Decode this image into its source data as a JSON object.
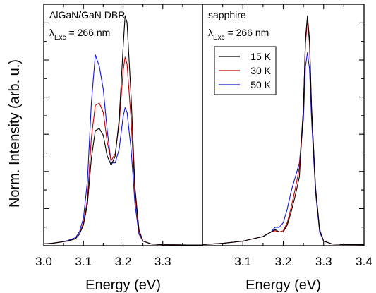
{
  "chart_data": {
    "type": "line",
    "ylabel": "Norm. Intensity (arb. u.)",
    "legend": {
      "placement": "top-center of right panel",
      "entries": [
        {
          "name": "15 K",
          "color": "#000000"
        },
        {
          "name": "30 K",
          "color": "#c00000"
        },
        {
          "name": "50 K",
          "color": "#1515d0"
        }
      ]
    },
    "panels": [
      {
        "id": "left",
        "title": "AlGaN/GaN DBR",
        "excitation": {
          "symbol": "λ",
          "subscript": "Exc",
          "value": " = 266 nm"
        },
        "xlabel": "Energy (eV)",
        "xlim": [
          3.0,
          3.4
        ],
        "ylim": [
          0,
          1.05
        ],
        "grid": false,
        "xticks": [
          3.0,
          3.1,
          3.2,
          3.3
        ],
        "xtick_labels": [
          "3.0",
          "3.1",
          "3.2",
          "3.3"
        ],
        "series": [
          {
            "name": "15 K",
            "color": "#000000",
            "points": [
              [
                3.0,
                0.008
              ],
              [
                3.02,
                0.01
              ],
              [
                3.04,
                0.015
              ],
              [
                3.06,
                0.02
              ],
              [
                3.08,
                0.03
              ],
              [
                3.09,
                0.05
              ],
              [
                3.1,
                0.09
              ],
              [
                3.11,
                0.18
              ],
              [
                3.12,
                0.38
              ],
              [
                3.13,
                0.5
              ],
              [
                3.14,
                0.51
              ],
              [
                3.15,
                0.48
              ],
              [
                3.16,
                0.39
              ],
              [
                3.17,
                0.35
              ],
              [
                3.18,
                0.39
              ],
              [
                3.19,
                0.55
              ],
              [
                3.2,
                0.86
              ],
              [
                3.205,
                1.0
              ],
              [
                3.21,
                0.97
              ],
              [
                3.22,
                0.65
              ],
              [
                3.23,
                0.25
              ],
              [
                3.24,
                0.07
              ],
              [
                3.25,
                0.02
              ],
              [
                3.27,
                0.008
              ],
              [
                3.3,
                0.004
              ],
              [
                3.4,
                0.002
              ]
            ]
          },
          {
            "name": "30 K",
            "color": "#c00000",
            "points": [
              [
                3.0,
                0.008
              ],
              [
                3.02,
                0.01
              ],
              [
                3.04,
                0.015
              ],
              [
                3.06,
                0.02
              ],
              [
                3.08,
                0.03
              ],
              [
                3.09,
                0.05
              ],
              [
                3.1,
                0.1
              ],
              [
                3.11,
                0.2
              ],
              [
                3.12,
                0.47
              ],
              [
                3.13,
                0.61
              ],
              [
                3.14,
                0.62
              ],
              [
                3.15,
                0.58
              ],
              [
                3.16,
                0.45
              ],
              [
                3.17,
                0.37
              ],
              [
                3.18,
                0.4
              ],
              [
                3.19,
                0.53
              ],
              [
                3.2,
                0.76
              ],
              [
                3.205,
                0.82
              ],
              [
                3.21,
                0.79
              ],
              [
                3.22,
                0.55
              ],
              [
                3.23,
                0.22
              ],
              [
                3.24,
                0.06
              ],
              [
                3.25,
                0.02
              ],
              [
                3.27,
                0.008
              ],
              [
                3.3,
                0.004
              ],
              [
                3.4,
                0.002
              ]
            ]
          },
          {
            "name": "50 K",
            "color": "#1515d0",
            "points": [
              [
                3.0,
                0.008
              ],
              [
                3.02,
                0.01
              ],
              [
                3.04,
                0.015
              ],
              [
                3.06,
                0.022
              ],
              [
                3.08,
                0.035
              ],
              [
                3.09,
                0.06
              ],
              [
                3.1,
                0.12
              ],
              [
                3.11,
                0.28
              ],
              [
                3.12,
                0.62
              ],
              [
                3.13,
                0.83
              ],
              [
                3.14,
                0.78
              ],
              [
                3.15,
                0.68
              ],
              [
                3.16,
                0.5
              ],
              [
                3.17,
                0.36
              ],
              [
                3.18,
                0.36
              ],
              [
                3.19,
                0.42
              ],
              [
                3.2,
                0.56
              ],
              [
                3.205,
                0.6
              ],
              [
                3.21,
                0.58
              ],
              [
                3.22,
                0.42
              ],
              [
                3.23,
                0.18
              ],
              [
                3.24,
                0.05
              ],
              [
                3.25,
                0.02
              ],
              [
                3.27,
                0.008
              ],
              [
                3.3,
                0.004
              ],
              [
                3.4,
                0.002
              ]
            ]
          }
        ]
      },
      {
        "id": "right",
        "title": "sapphire",
        "excitation": {
          "symbol": "λ",
          "subscript": "Exc",
          "value": " = 266 nm"
        },
        "xlabel": "Energy (eV)",
        "xlim": [
          3.0,
          3.4
        ],
        "ylim": [
          0,
          1.05
        ],
        "grid": false,
        "xticks": [
          3.1,
          3.2,
          3.3,
          3.4
        ],
        "xtick_labels": [
          "3.1",
          "3.2",
          "3.3",
          "3.4"
        ],
        "series": [
          {
            "name": "15 K",
            "color": "#000000",
            "points": [
              [
                3.0,
                0.005
              ],
              [
                3.05,
                0.01
              ],
              [
                3.1,
                0.02
              ],
              [
                3.15,
                0.04
              ],
              [
                3.17,
                0.06
              ],
              [
                3.18,
                0.07
              ],
              [
                3.19,
                0.06
              ],
              [
                3.2,
                0.06
              ],
              [
                3.21,
                0.09
              ],
              [
                3.22,
                0.15
              ],
              [
                3.23,
                0.22
              ],
              [
                3.24,
                0.3
              ],
              [
                3.25,
                0.6
              ],
              [
                3.255,
                0.9
              ],
              [
                3.26,
                1.0
              ],
              [
                3.265,
                0.9
              ],
              [
                3.27,
                0.6
              ],
              [
                3.28,
                0.25
              ],
              [
                3.29,
                0.07
              ],
              [
                3.3,
                0.02
              ],
              [
                3.32,
                0.008
              ],
              [
                3.35,
                0.005
              ],
              [
                3.4,
                0.004
              ]
            ]
          },
          {
            "name": "30 K",
            "color": "#c00000",
            "points": [
              [
                3.0,
                0.005
              ],
              [
                3.05,
                0.01
              ],
              [
                3.1,
                0.02
              ],
              [
                3.15,
                0.04
              ],
              [
                3.17,
                0.06
              ],
              [
                3.18,
                0.065
              ],
              [
                3.19,
                0.06
              ],
              [
                3.2,
                0.065
              ],
              [
                3.21,
                0.1
              ],
              [
                3.22,
                0.17
              ],
              [
                3.23,
                0.25
              ],
              [
                3.24,
                0.34
              ],
              [
                3.25,
                0.6
              ],
              [
                3.255,
                0.88
              ],
              [
                3.26,
                0.98
              ],
              [
                3.265,
                0.88
              ],
              [
                3.27,
                0.6
              ],
              [
                3.28,
                0.25
              ],
              [
                3.29,
                0.07
              ],
              [
                3.3,
                0.02
              ],
              [
                3.32,
                0.008
              ],
              [
                3.35,
                0.005
              ],
              [
                3.4,
                0.004
              ]
            ]
          },
          {
            "name": "50 K",
            "color": "#1515d0",
            "points": [
              [
                3.0,
                0.005
              ],
              [
                3.05,
                0.01
              ],
              [
                3.1,
                0.02
              ],
              [
                3.15,
                0.04
              ],
              [
                3.17,
                0.06
              ],
              [
                3.18,
                0.08
              ],
              [
                3.19,
                0.08
              ],
              [
                3.2,
                0.1
              ],
              [
                3.21,
                0.16
              ],
              [
                3.22,
                0.24
              ],
              [
                3.23,
                0.3
              ],
              [
                3.24,
                0.36
              ],
              [
                3.25,
                0.55
              ],
              [
                3.255,
                0.78
              ],
              [
                3.26,
                0.84
              ],
              [
                3.265,
                0.77
              ],
              [
                3.27,
                0.55
              ],
              [
                3.28,
                0.23
              ],
              [
                3.29,
                0.06
              ],
              [
                3.3,
                0.02
              ],
              [
                3.32,
                0.008
              ],
              [
                3.35,
                0.005
              ],
              [
                3.4,
                0.004
              ]
            ]
          }
        ]
      }
    ]
  }
}
